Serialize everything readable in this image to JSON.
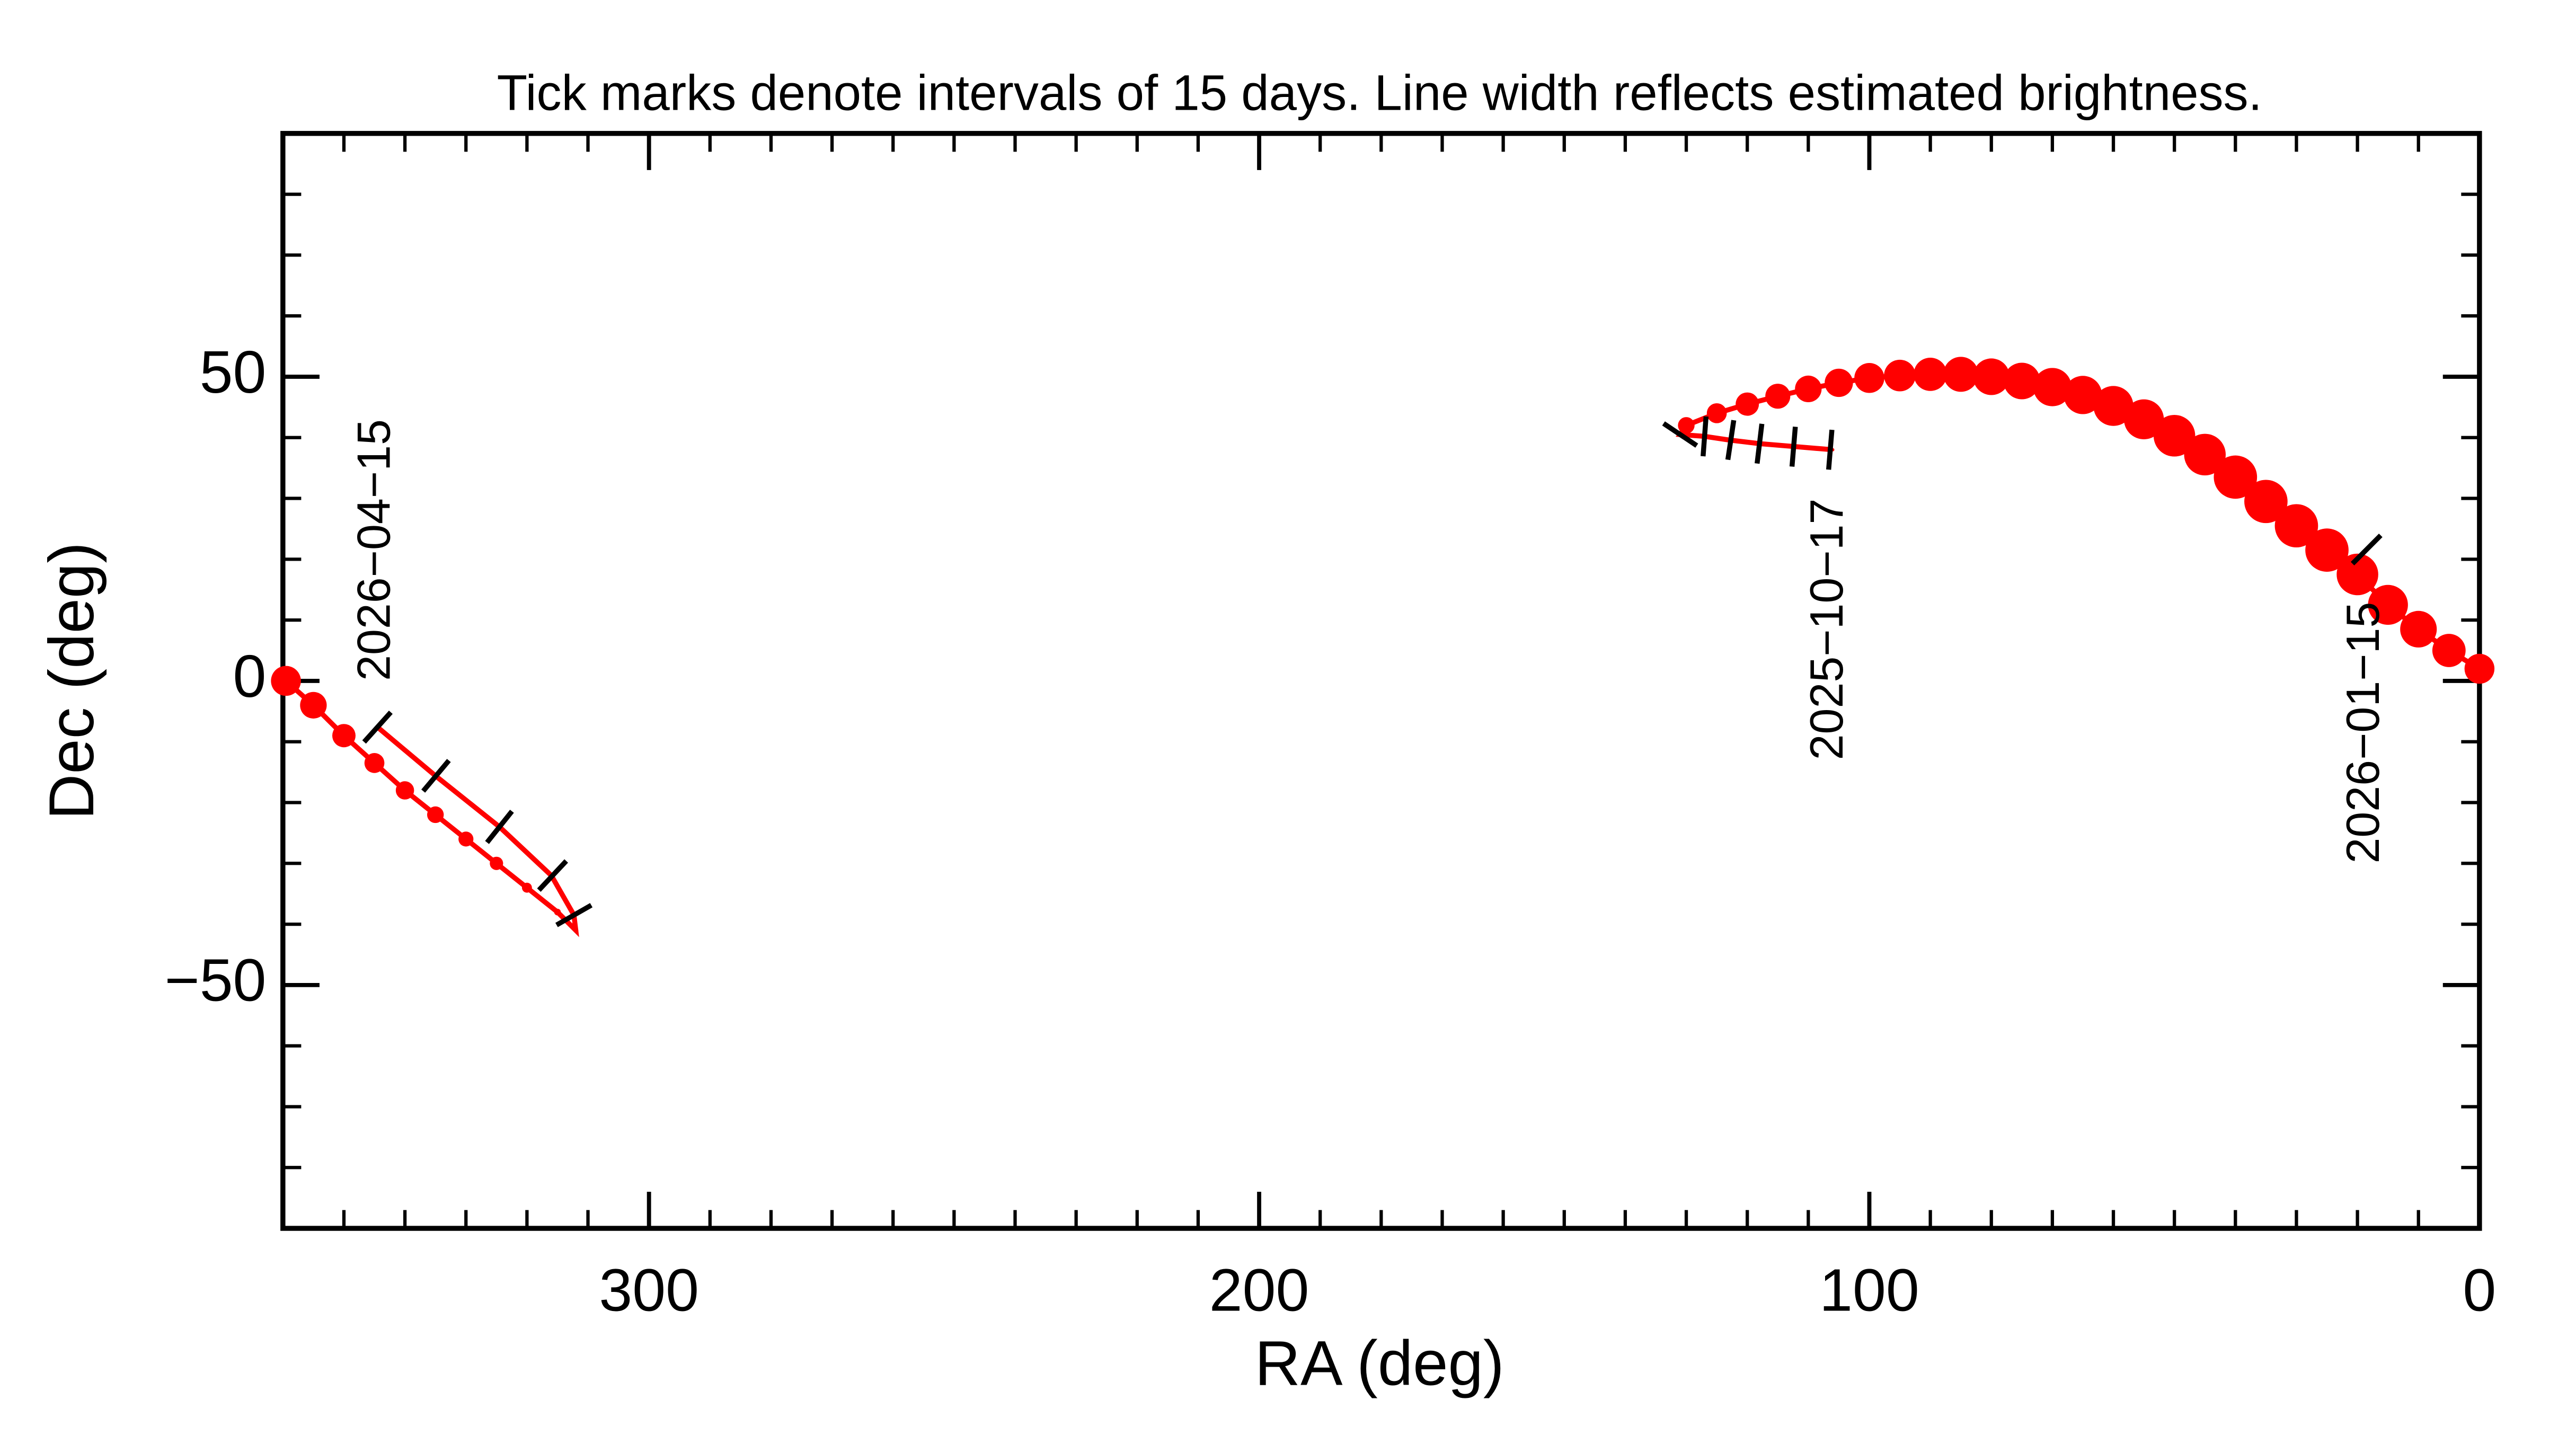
{
  "chart_data": {
    "type": "line",
    "title": "Tick marks denote intervals of 15 days.  Line width reflects estimated brightness.",
    "x_label": "RA (deg)",
    "y_label": "Dec (deg)",
    "color": "#ff0000",
    "xlim": [
      360,
      0
    ],
    "ylim": [
      -90,
      90
    ],
    "xticks": [
      300,
      200,
      100,
      0
    ],
    "yticks": [
      -50,
      0,
      50
    ],
    "xminorticks": [
      350,
      340,
      330,
      320,
      310,
      290,
      280,
      270,
      260,
      250,
      240,
      230,
      220,
      210,
      190,
      180,
      170,
      160,
      150,
      140,
      130,
      120,
      110,
      90,
      80,
      70,
      60,
      50,
      40,
      30,
      20,
      10
    ],
    "yminorticks": [
      -80,
      -70,
      -60,
      -40,
      -30,
      -20,
      -10,
      10,
      20,
      30,
      40,
      60,
      70,
      80
    ],
    "x": [
      106,
      112,
      118,
      123,
      127,
      131,
      130,
      125,
      120,
      115,
      110,
      105,
      100,
      95,
      90,
      85,
      80,
      75,
      70,
      65,
      60,
      55,
      50,
      45,
      40,
      35,
      30,
      25,
      20,
      15,
      10,
      5,
      0,
      null,
      359.5,
      355,
      350,
      345,
      340,
      335,
      330,
      325,
      320,
      315,
      312,
      312.3,
      316,
      324.5,
      335,
      344.5
    ],
    "values": [
      38,
      38.5,
      39,
      39.6,
      40.2,
      40.5,
      42,
      44,
      45.5,
      46.8,
      48,
      49,
      49.8,
      50.2,
      50.4,
      50.4,
      50,
      49.3,
      48.3,
      47,
      45.2,
      43,
      40.3,
      37.2,
      33.5,
      29.5,
      25.5,
      21.5,
      17.5,
      12.5,
      8.5,
      5,
      2,
      null,
      0,
      -4,
      -9,
      -13.5,
      -18,
      -22,
      -26,
      -30,
      -34,
      -38,
      -41,
      -38.5,
      -32,
      -24,
      -15.6,
      -7.6
    ],
    "widths": [
      2,
      2,
      2,
      2,
      2,
      2,
      10,
      12,
      14,
      15,
      16,
      17,
      18,
      19,
      20,
      21,
      22,
      22,
      23,
      23,
      24,
      24,
      25,
      25,
      26,
      26,
      26,
      26,
      25,
      24,
      22,
      20,
      18,
      null,
      18,
      16,
      14,
      12,
      11,
      10,
      9,
      8,
      6,
      4,
      3,
      2,
      2,
      2,
      2,
      2
    ],
    "date_ticks": [
      {
        "x": 106.4,
        "y": 38
      },
      {
        "x": 112.4,
        "y": 38.5
      },
      {
        "x": 118,
        "y": 39
      },
      {
        "x": 122.7,
        "y": 39.6
      },
      {
        "x": 127,
        "y": 40.2
      },
      {
        "x": 131,
        "y": 40.5
      },
      {
        "x": 18.5,
        "y": 21.6
      },
      {
        "x": 344.5,
        "y": -7.6
      },
      {
        "x": 334.9,
        "y": -15.6
      },
      {
        "x": 324.5,
        "y": -24
      },
      {
        "x": 315.8,
        "y": -32
      },
      {
        "x": 312.3,
        "y": -38.5
      }
    ],
    "annotations": [
      {
        "text": "2025−10−17",
        "x": 106.4,
        "y": 30
      },
      {
        "text": "2026−01−15",
        "x": 18.5,
        "y": 13
      },
      {
        "text": "2026−04−15",
        "x": 344.5,
        "y": 0
      }
    ]
  }
}
